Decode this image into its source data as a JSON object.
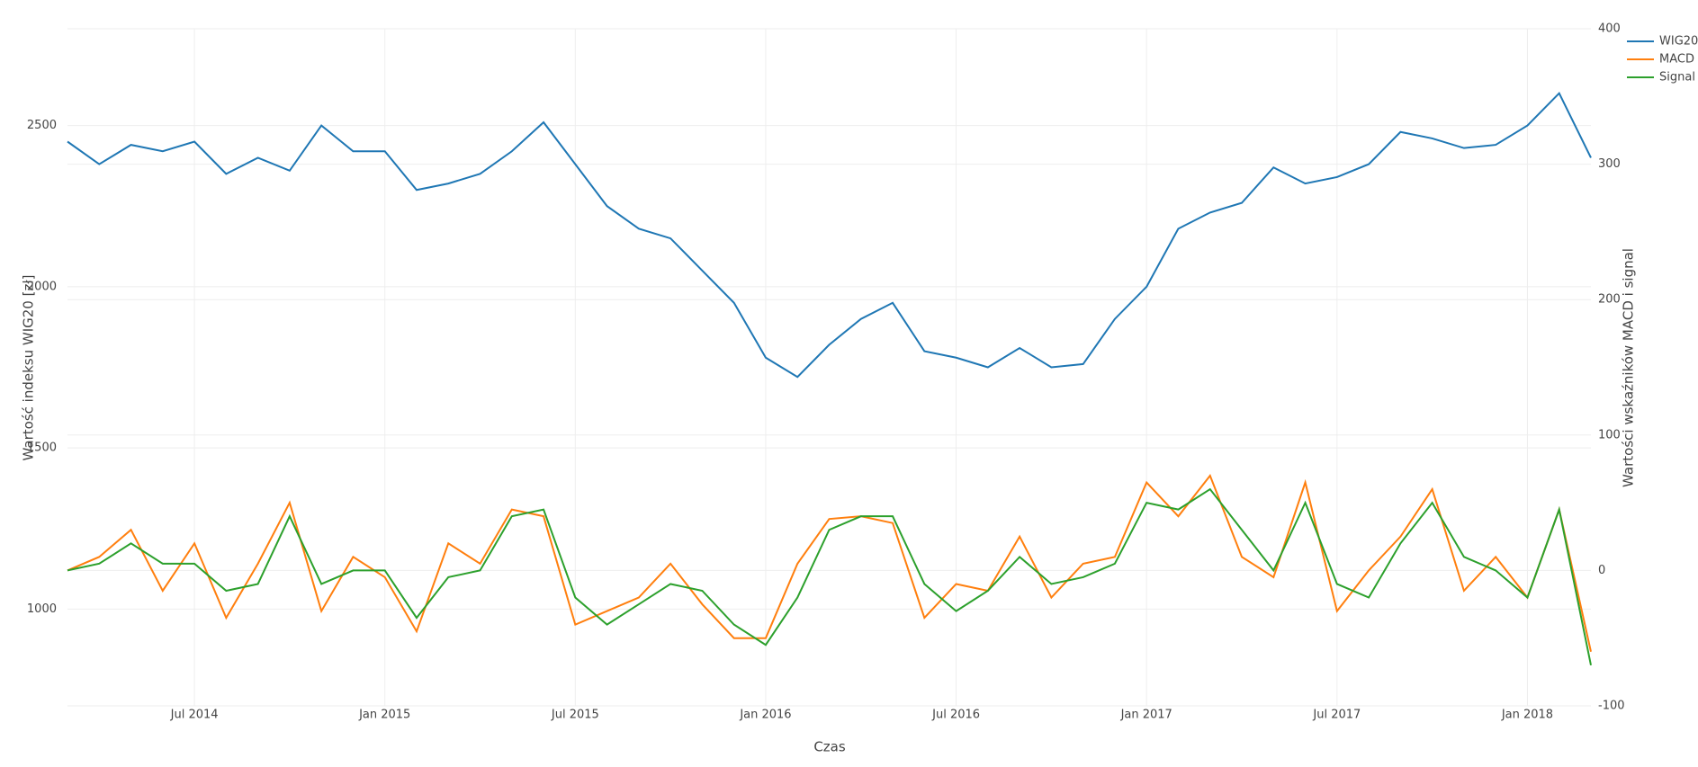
{
  "chart_data": {
    "type": "line",
    "xlabel": "Czas",
    "ylabel": "Wartość indeksu WIG20 [zł]",
    "y2label": "Wartości wskaźników MACD i signal",
    "x": [
      "2014-03",
      "2014-04",
      "2014-05",
      "2014-06",
      "2014-07",
      "2014-08",
      "2014-09",
      "2014-10",
      "2014-11",
      "2014-12",
      "2015-01",
      "2015-02",
      "2015-03",
      "2015-04",
      "2015-05",
      "2015-06",
      "2015-07",
      "2015-08",
      "2015-09",
      "2015-10",
      "2015-11",
      "2015-12",
      "2016-01",
      "2016-02",
      "2016-03",
      "2016-04",
      "2016-05",
      "2016-06",
      "2016-07",
      "2016-08",
      "2016-09",
      "2016-10",
      "2016-11",
      "2016-12",
      "2017-01",
      "2017-02",
      "2017-03",
      "2017-04",
      "2017-05",
      "2017-06",
      "2017-07",
      "2017-08",
      "2017-09",
      "2017-10",
      "2017-11",
      "2017-12",
      "2018-01",
      "2018-02",
      "2018-03"
    ],
    "series": [
      {
        "name": "WIG20",
        "color": "#1f77b4",
        "axis": "y",
        "values": [
          2450,
          2380,
          2440,
          2420,
          2450,
          2350,
          2400,
          2360,
          2500,
          2420,
          2420,
          2300,
          2320,
          2350,
          2420,
          2510,
          2380,
          2250,
          2180,
          2150,
          2050,
          1950,
          1780,
          1720,
          1820,
          1900,
          1950,
          1800,
          1780,
          1750,
          1810,
          1750,
          1760,
          1900,
          2000,
          2180,
          2230,
          2260,
          2370,
          2320,
          2340,
          2380,
          2480,
          2460,
          2430,
          2440,
          2500,
          2600,
          2400
        ]
      },
      {
        "name": "MACD",
        "color": "#ff7f0e",
        "axis": "y2",
        "values": [
          0,
          10,
          30,
          -15,
          20,
          -35,
          5,
          50,
          -30,
          10,
          -5,
          -45,
          20,
          5,
          45,
          40,
          -40,
          -30,
          -20,
          5,
          -25,
          -50,
          -50,
          5,
          38,
          40,
          35,
          -35,
          -10,
          -15,
          25,
          -20,
          5,
          10,
          65,
          40,
          70,
          10,
          -5,
          65,
          -30,
          0,
          25,
          60,
          -15,
          10,
          -20,
          45,
          -60
        ]
      },
      {
        "name": "Signal",
        "color": "#2ca02c",
        "axis": "y2",
        "values": [
          0,
          5,
          20,
          5,
          5,
          -15,
          -10,
          40,
          -10,
          0,
          0,
          -35,
          -5,
          0,
          40,
          45,
          -20,
          -40,
          -25,
          -10,
          -15,
          -40,
          -55,
          -20,
          30,
          40,
          40,
          -10,
          -30,
          -15,
          10,
          -10,
          -5,
          5,
          50,
          45,
          60,
          30,
          0,
          50,
          -10,
          -20,
          20,
          50,
          10,
          0,
          -20,
          45,
          -70
        ]
      }
    ],
    "xlim": [
      "2014-03",
      "2018-03"
    ],
    "xticks": [
      {
        "value": "2014-07",
        "label": "Jul 2014"
      },
      {
        "value": "2015-01",
        "label": "Jan 2015"
      },
      {
        "value": "2015-07",
        "label": "Jul 2015"
      },
      {
        "value": "2016-01",
        "label": "Jan 2016"
      },
      {
        "value": "2016-07",
        "label": "Jul 2016"
      },
      {
        "value": "2017-01",
        "label": "Jan 2017"
      },
      {
        "value": "2017-07",
        "label": "Jul 2017"
      },
      {
        "value": "2018-01",
        "label": "Jan 2018"
      }
    ],
    "ylim": [
      700,
      2800
    ],
    "yticks": [
      1000,
      1500,
      2000,
      2500
    ],
    "y2lim": [
      -100,
      400
    ],
    "y2ticks": [
      -100,
      0,
      100,
      200,
      300,
      400
    ],
    "grid": true,
    "legend": "top-right"
  }
}
